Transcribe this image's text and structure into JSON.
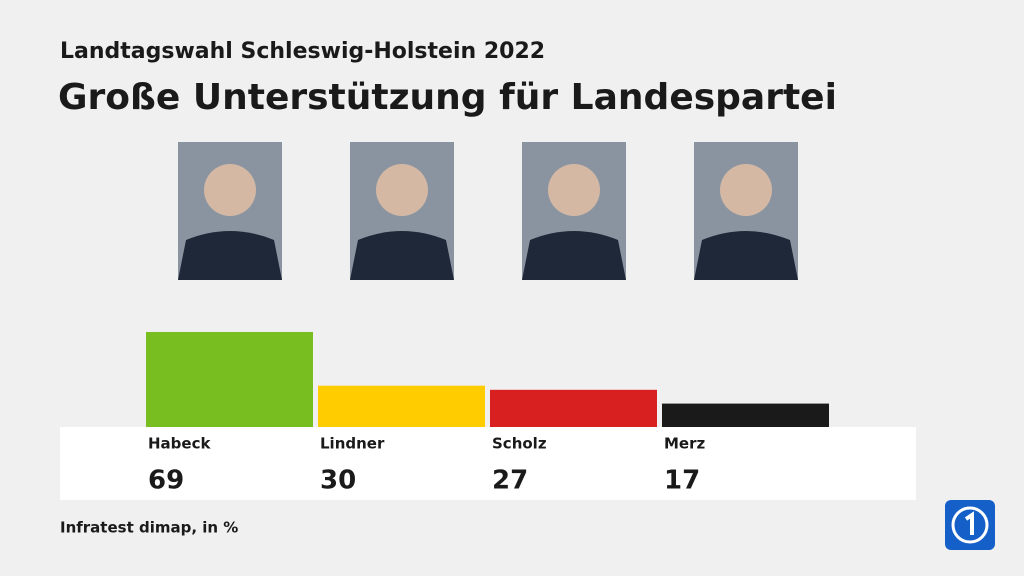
{
  "chart_data": {
    "type": "bar",
    "subtitle": "Landtagswahl Schleswig-Holstein 2022",
    "title": "Große Unterstützung für Landespartei",
    "categories": [
      "Habeck",
      "Lindner",
      "Scholz",
      "Merz"
    ],
    "values": [
      69,
      30,
      27,
      17
    ],
    "colors": [
      "#78be20",
      "#ffcc00",
      "#d82020",
      "#1a1a1a"
    ],
    "source": "Infratest dimap, in %"
  }
}
